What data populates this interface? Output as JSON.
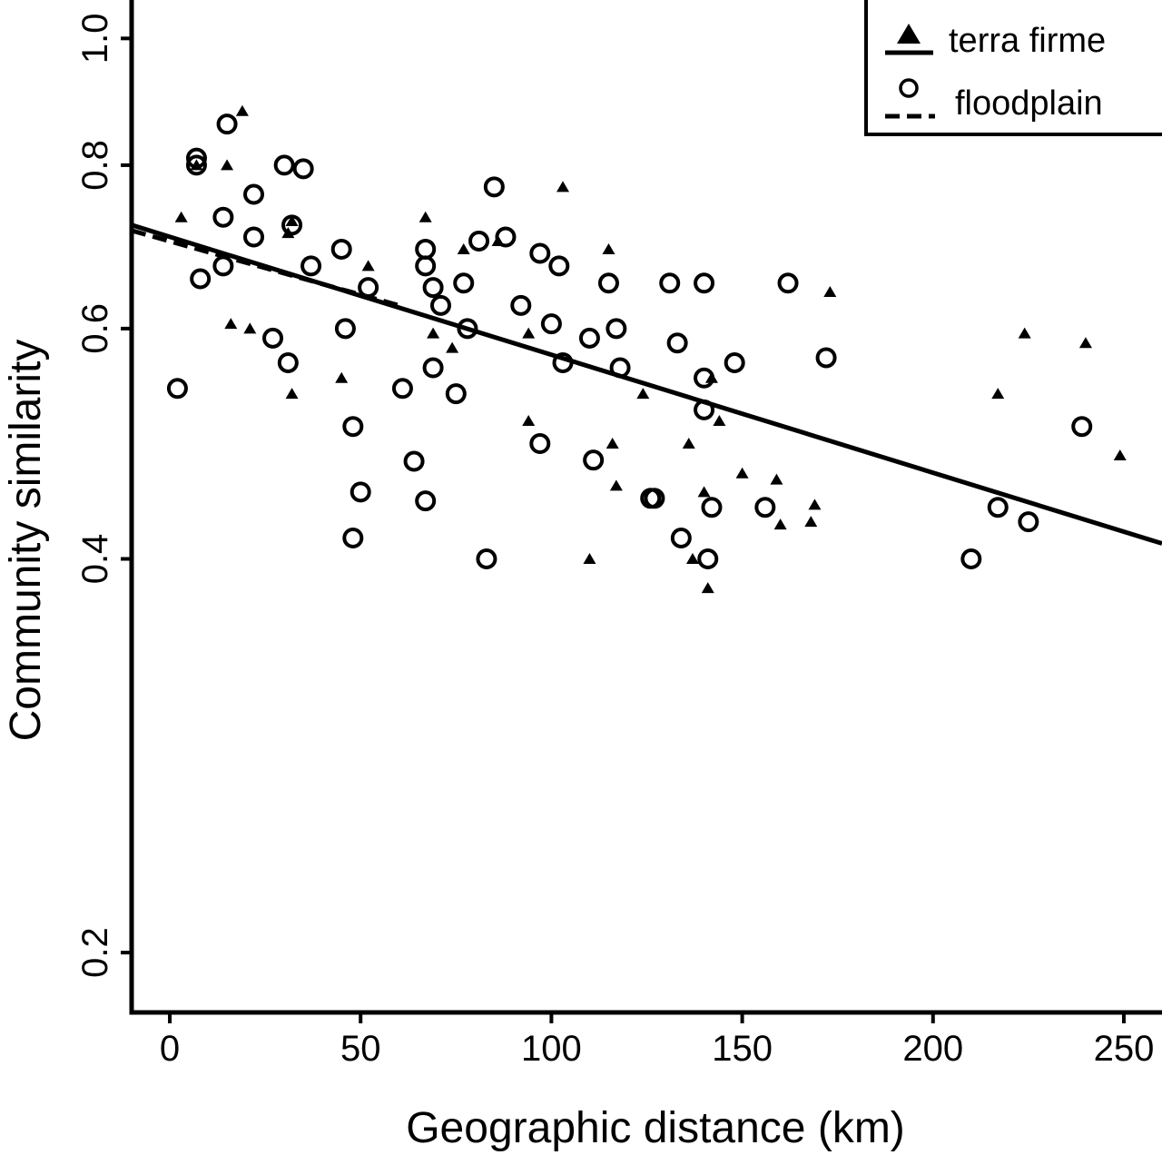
{
  "chart_data": {
    "type": "scatter",
    "xlabel": "Geographic distance (km)",
    "ylabel": "Community similarity",
    "xlim": [
      -10,
      260
    ],
    "ylim": [
      0.18,
      1.07
    ],
    "y_scale": "log",
    "x_ticks": [
      0,
      50,
      100,
      150,
      200,
      250
    ],
    "x_tick_labels": [
      "0",
      "50",
      "100",
      "150",
      "200",
      "250"
    ],
    "y_ticks": [
      0.2,
      0.4,
      0.6,
      0.8,
      1.0
    ],
    "y_tick_labels": [
      "0.2",
      "0.4",
      "0.6",
      "0.8",
      "1.0"
    ],
    "grid": false,
    "legend_position": "top-right",
    "series": [
      {
        "name": "terra firme",
        "marker": "triangle",
        "line_style": "solid",
        "fit_line": {
          "x": [
            -10,
            260
          ],
          "y": [
            0.72,
            0.411
          ]
        },
        "points": [
          [
            3,
            0.73
          ],
          [
            7,
            0.8
          ],
          [
            15,
            0.8
          ],
          [
            19,
            0.88
          ],
          [
            16,
            0.605
          ],
          [
            21,
            0.6
          ],
          [
            32,
            0.725
          ],
          [
            31,
            0.71
          ],
          [
            32,
            0.535
          ],
          [
            45,
            0.55
          ],
          [
            52,
            0.67
          ],
          [
            67,
            0.73
          ],
          [
            69,
            0.595
          ],
          [
            74,
            0.58
          ],
          [
            77,
            0.69
          ],
          [
            86,
            0.7
          ],
          [
            94,
            0.595
          ],
          [
            94,
            0.51
          ],
          [
            103,
            0.77
          ],
          [
            110,
            0.4
          ],
          [
            115,
            0.69
          ],
          [
            116,
            0.49
          ],
          [
            117,
            0.455
          ],
          [
            124,
            0.535
          ],
          [
            136,
            0.49
          ],
          [
            137,
            0.4
          ],
          [
            140,
            0.45
          ],
          [
            141,
            0.38
          ],
          [
            142,
            0.55
          ],
          [
            144,
            0.51
          ],
          [
            150,
            0.465
          ],
          [
            159,
            0.46
          ],
          [
            160,
            0.425
          ],
          [
            168,
            0.427
          ],
          [
            169,
            0.44
          ],
          [
            173,
            0.64
          ],
          [
            217,
            0.535
          ],
          [
            224,
            0.595
          ],
          [
            240,
            0.585
          ],
          [
            249,
            0.48
          ]
        ]
      },
      {
        "name": "floodplain",
        "marker": "circle",
        "line_style": "dashed",
        "fit_line": {
          "x": [
            -10,
            60
          ],
          "y": [
            0.713,
            0.625
          ]
        },
        "points": [
          [
            2,
            0.54
          ],
          [
            7,
            0.81
          ],
          [
            7,
            0.8
          ],
          [
            8,
            0.655
          ],
          [
            14,
            0.73
          ],
          [
            14,
            0.67
          ],
          [
            15,
            0.86
          ],
          [
            22,
            0.76
          ],
          [
            22,
            0.705
          ],
          [
            27,
            0.59
          ],
          [
            30,
            0.8
          ],
          [
            31,
            0.565
          ],
          [
            32,
            0.72
          ],
          [
            35,
            0.795
          ],
          [
            37,
            0.67
          ],
          [
            45,
            0.69
          ],
          [
            46,
            0.6
          ],
          [
            48,
            0.505
          ],
          [
            48,
            0.415
          ],
          [
            50,
            0.45
          ],
          [
            52,
            0.645
          ],
          [
            61,
            0.54
          ],
          [
            64,
            0.475
          ],
          [
            67,
            0.69
          ],
          [
            67,
            0.67
          ],
          [
            67,
            0.443
          ],
          [
            69,
            0.56
          ],
          [
            69,
            0.645
          ],
          [
            71,
            0.625
          ],
          [
            75,
            0.535
          ],
          [
            77,
            0.65
          ],
          [
            78,
            0.6
          ],
          [
            81,
            0.7
          ],
          [
            83,
            0.4
          ],
          [
            85,
            0.77
          ],
          [
            88,
            0.705
          ],
          [
            92,
            0.625
          ],
          [
            97,
            0.685
          ],
          [
            97,
            0.49
          ],
          [
            100,
            0.605
          ],
          [
            102,
            0.67
          ],
          [
            103,
            0.565
          ],
          [
            110,
            0.59
          ],
          [
            111,
            0.476
          ],
          [
            115,
            0.65
          ],
          [
            117,
            0.6
          ],
          [
            118,
            0.56
          ],
          [
            126,
            0.445
          ],
          [
            127,
            0.445
          ],
          [
            131,
            0.65
          ],
          [
            133,
            0.585
          ],
          [
            134,
            0.415
          ],
          [
            140,
            0.55
          ],
          [
            140,
            0.65
          ],
          [
            140,
            0.52
          ],
          [
            141,
            0.4
          ],
          [
            142,
            0.438
          ],
          [
            148,
            0.565
          ],
          [
            156,
            0.438
          ],
          [
            162,
            0.65
          ],
          [
            172,
            0.57
          ],
          [
            210,
            0.4
          ],
          [
            217,
            0.438
          ],
          [
            225,
            0.427
          ],
          [
            239,
            0.505
          ]
        ]
      }
    ]
  }
}
